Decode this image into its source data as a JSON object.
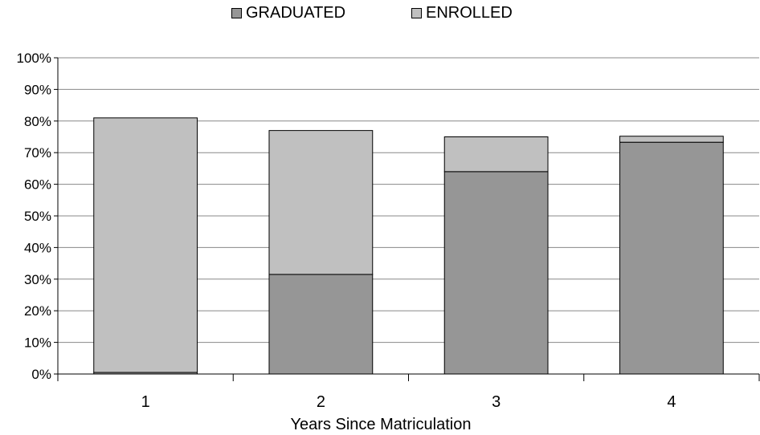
{
  "chart_data": {
    "type": "bar",
    "stacked": true,
    "title": "",
    "xlabel": "Years Since Matriculation",
    "ylabel": "",
    "categories": [
      "1",
      "2",
      "3",
      "4"
    ],
    "ylim": [
      0,
      100
    ],
    "y_ticks": [
      0,
      10,
      20,
      30,
      40,
      50,
      60,
      70,
      80,
      90,
      100
    ],
    "y_tick_format": "{v}%",
    "grid": true,
    "legend_position": "top",
    "series": [
      {
        "name": "GRADUATED",
        "color": "#969696",
        "values": [
          0.5,
          31.5,
          64,
          73.3
        ]
      },
      {
        "name": "ENROLLED",
        "color": "#c0c0c0",
        "values": [
          80.5,
          45.5,
          11,
          1.9
        ]
      }
    ]
  }
}
